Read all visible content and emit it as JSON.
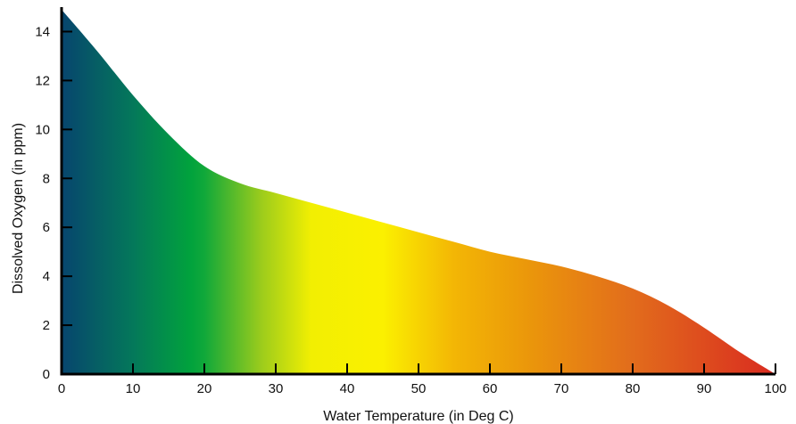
{
  "chart_data": {
    "type": "area",
    "title": "",
    "xlabel": "Water Temperature (in Deg C)",
    "ylabel": "Dissolved Oxygen (in ppm)",
    "xlim": [
      0,
      100
    ],
    "ylim": [
      0,
      15
    ],
    "x_ticks": [
      "0",
      "10",
      "20",
      "30",
      "40",
      "50",
      "60",
      "70",
      "80",
      "90",
      "100"
    ],
    "y_ticks": [
      "0",
      "2",
      "4",
      "6",
      "8",
      "10",
      "12",
      "14"
    ],
    "grid": false,
    "legend": "none",
    "x": [
      0,
      5,
      10,
      15,
      20,
      25,
      30,
      35,
      40,
      45,
      50,
      55,
      60,
      65,
      70,
      75,
      80,
      85,
      90,
      95,
      100
    ],
    "series": [
      {
        "values": [
          14.9,
          13.2,
          11.4,
          9.8,
          8.5,
          7.8,
          7.4,
          7.0,
          6.6,
          6.2,
          5.8,
          5.4,
          5.0,
          4.7,
          4.4,
          4.0,
          3.5,
          2.8,
          1.9,
          0.9,
          0.0
        ]
      }
    ],
    "fill_gradient": [
      {
        "x": 0,
        "color": "#07456e"
      },
      {
        "x": 10,
        "color": "#04785a"
      },
      {
        "x": 18,
        "color": "#01a23d"
      },
      {
        "x": 20,
        "color": "#10a83a"
      },
      {
        "x": 28,
        "color": "#9ccc1c"
      },
      {
        "x": 35,
        "color": "#f2ef02"
      },
      {
        "x": 45,
        "color": "#fbf000"
      },
      {
        "x": 55,
        "color": "#f3b605"
      },
      {
        "x": 65,
        "color": "#eb980a"
      },
      {
        "x": 80,
        "color": "#e26c1c"
      },
      {
        "x": 100,
        "color": "#d92b20"
      }
    ],
    "axis_color": "#000000"
  }
}
